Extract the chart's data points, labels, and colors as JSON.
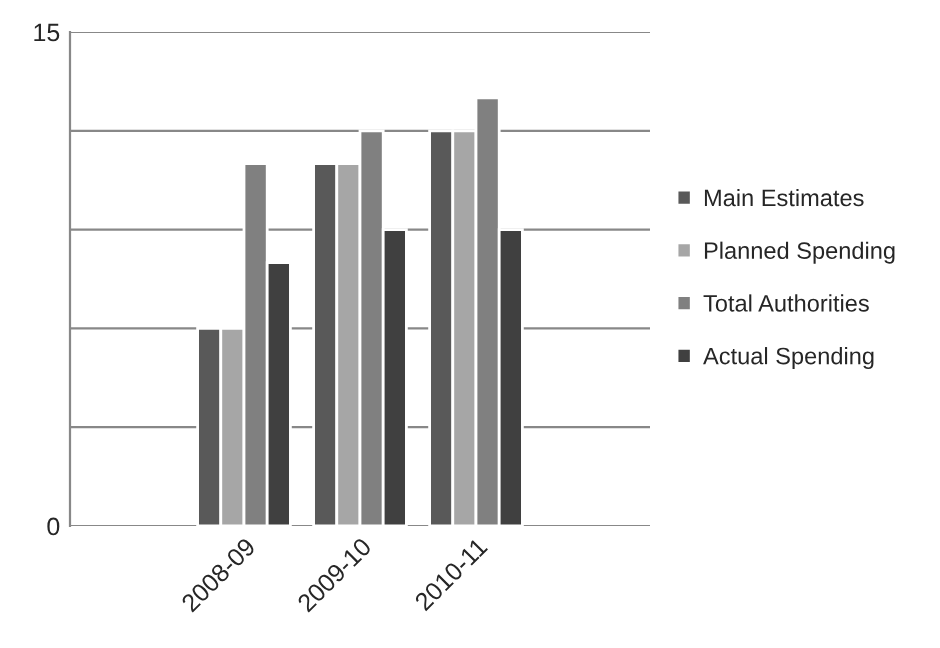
{
  "chart_data": {
    "type": "bar",
    "categories": [
      null,
      "2008-09",
      "2009-10",
      "2010-11",
      null
    ],
    "series": [
      {
        "name": "Main Estimates",
        "color": "#595959",
        "values": [
          null,
          6,
          11,
          12,
          null
        ]
      },
      {
        "name": "Planned Spending",
        "color": "#a6a6a6",
        "values": [
          null,
          6,
          11,
          12,
          null
        ]
      },
      {
        "name": "Total Authorities",
        "color": "#808080",
        "values": [
          null,
          11,
          12,
          13,
          null
        ]
      },
      {
        "name": "Actual Spending",
        "color": "#404040",
        "values": [
          null,
          8,
          9,
          9,
          null
        ]
      }
    ],
    "ylim": [
      0,
      15
    ],
    "yticks": [
      0,
      {
        "value": 3,
        "label": null
      },
      {
        "value": 6,
        "label": null
      },
      {
        "value": 9,
        "label": null
      },
      {
        "value": 12,
        "label": null
      },
      15
    ],
    "grid": "y",
    "legend": "right"
  }
}
